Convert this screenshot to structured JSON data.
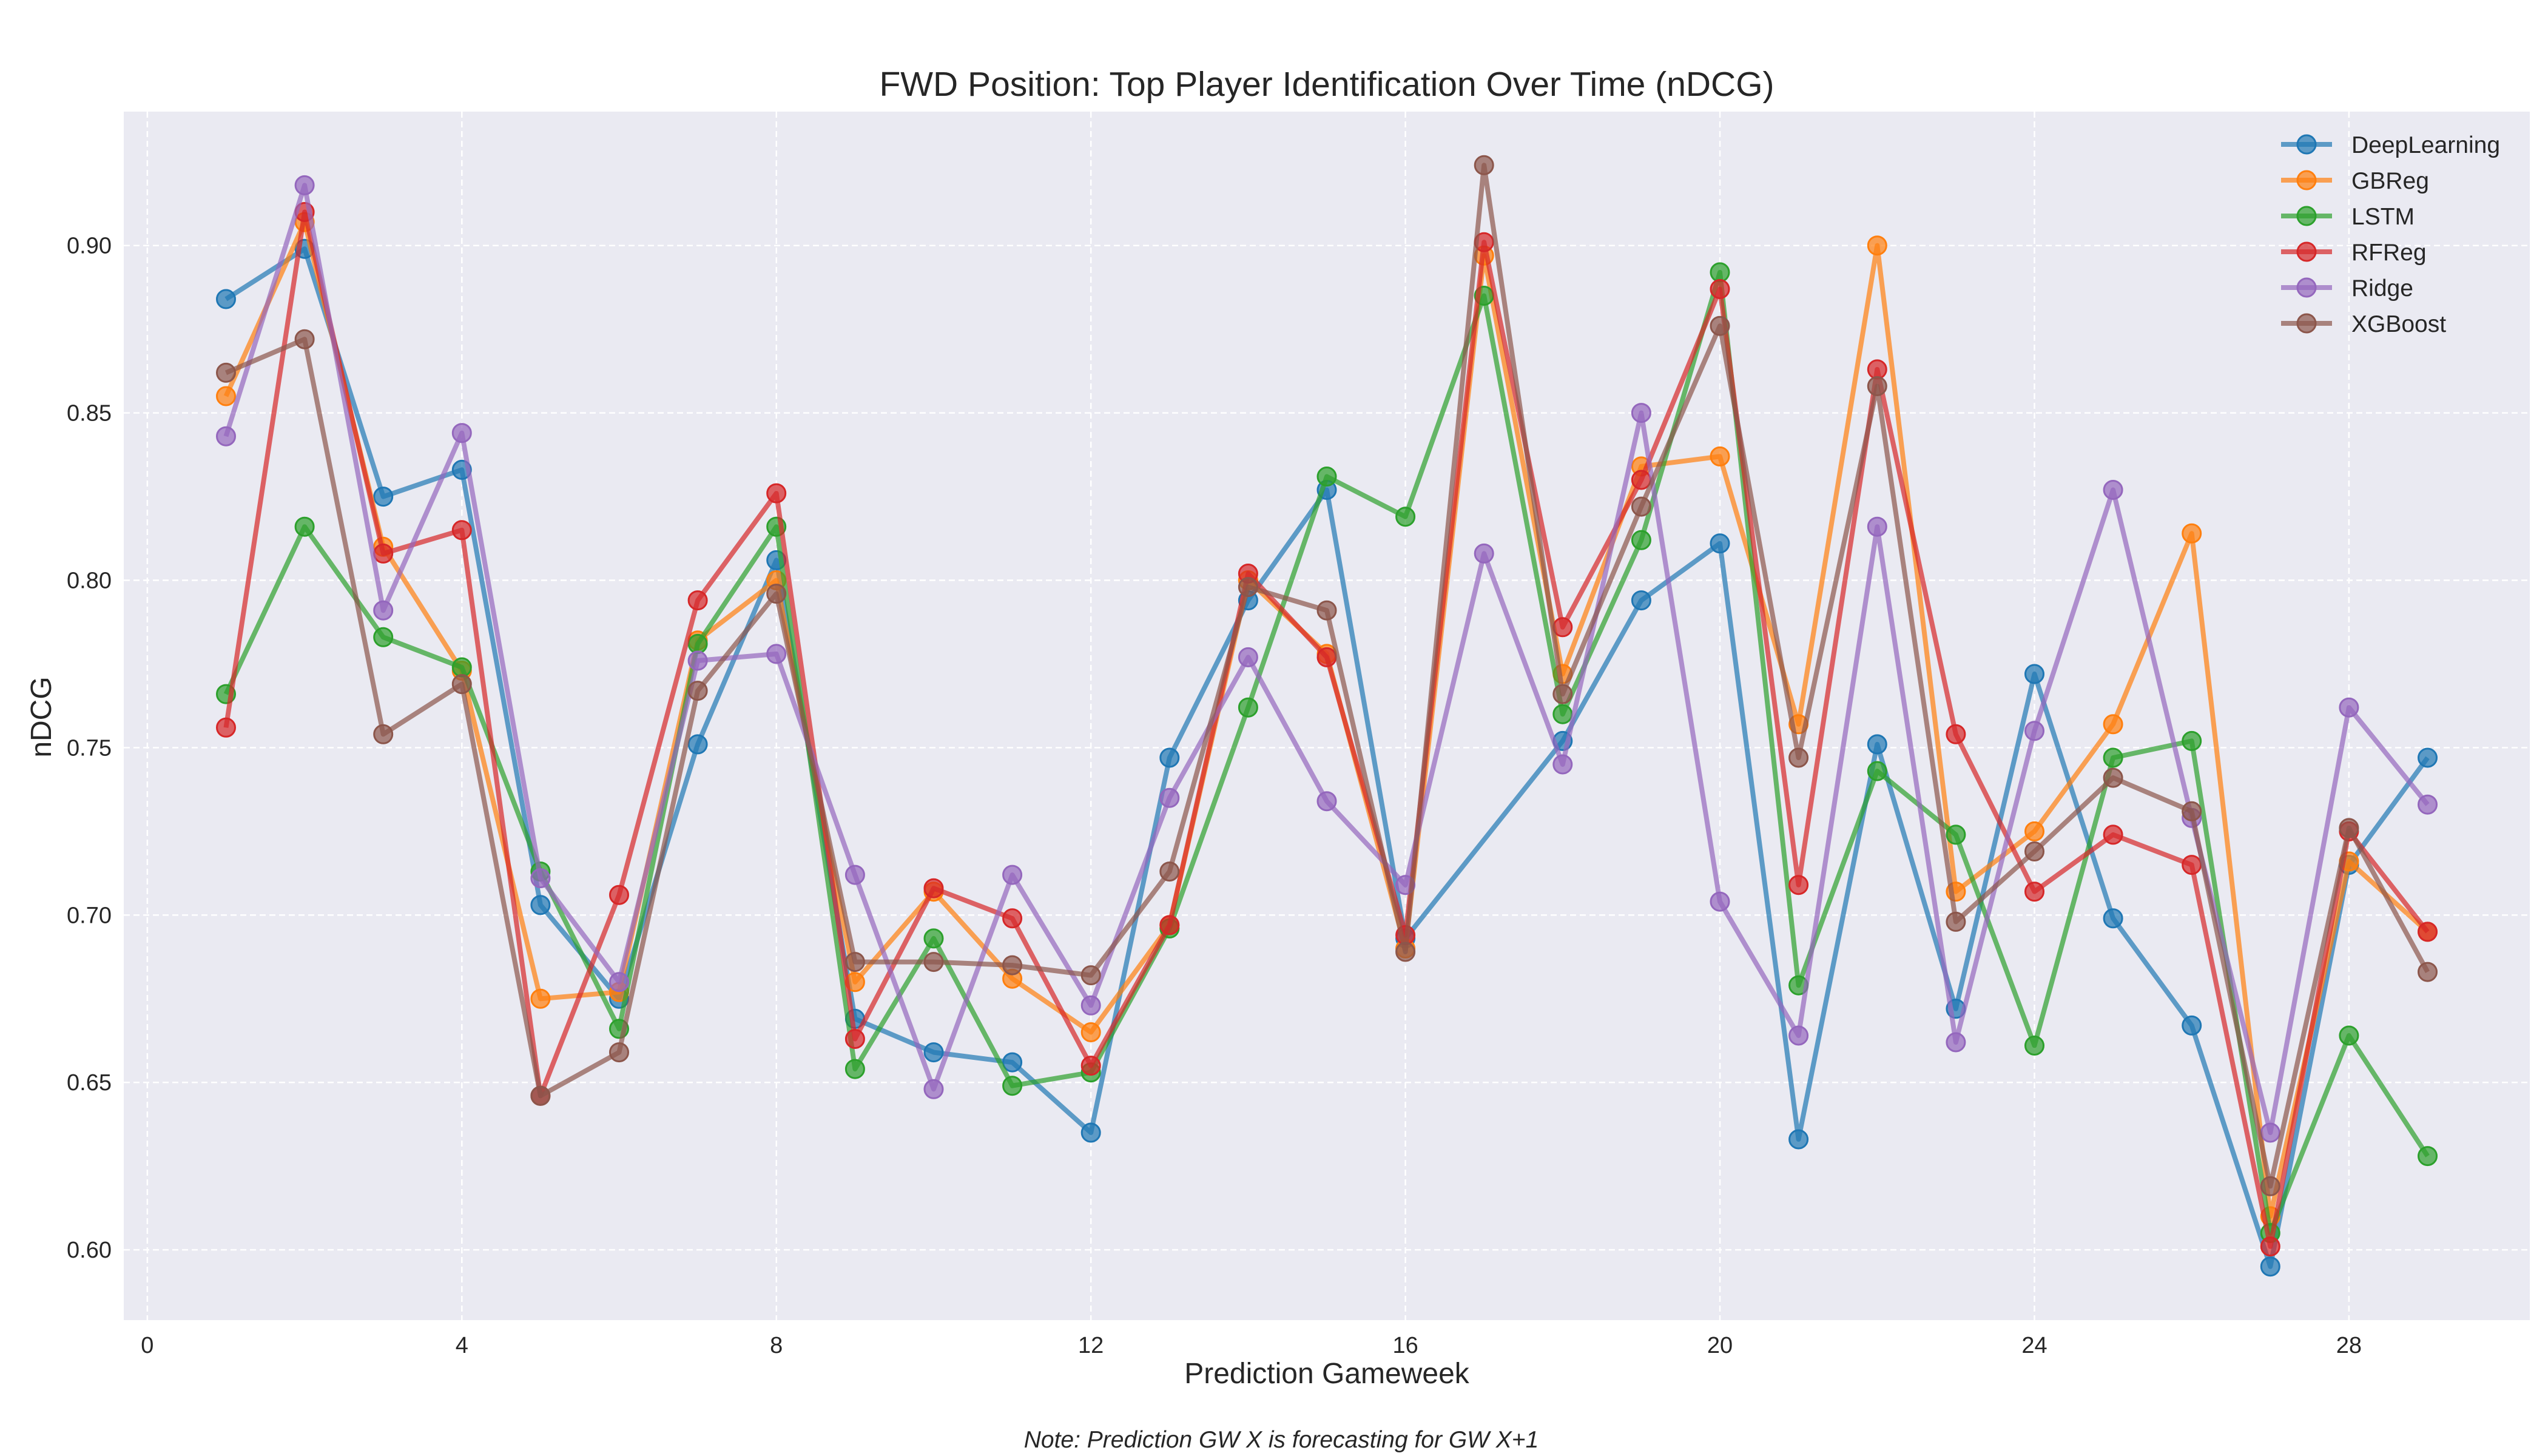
{
  "chart_data": {
    "type": "line",
    "title": "FWD Position: Top Player Identification Over Time (nDCG)",
    "xlabel": "Prediction Gameweek",
    "ylabel": "nDCG",
    "note": "Note: Prediction GW X is forecasting for GW X+1",
    "xlim": [
      -0.3,
      30.3
    ],
    "ylim": [
      0.579,
      0.94
    ],
    "x_ticks": [
      0,
      4,
      8,
      12,
      16,
      20,
      24,
      28
    ],
    "y_ticks": [
      0.6,
      0.65,
      0.7,
      0.75,
      0.8,
      0.85,
      0.9
    ],
    "x_tick_labels": [
      "0",
      "4",
      "8",
      "12",
      "16",
      "20",
      "24",
      "28"
    ],
    "y_tick_labels": [
      "0.60",
      "0.65",
      "0.70",
      "0.75",
      "0.80",
      "0.85",
      "0.90"
    ],
    "grid": true,
    "legend_position": "top-right",
    "x": [
      1,
      2,
      3,
      4,
      5,
      6,
      7,
      8,
      9,
      10,
      11,
      12,
      13,
      14,
      15,
      16,
      17,
      18,
      19,
      20,
      21,
      22,
      23,
      24,
      25,
      26,
      27,
      28,
      29
    ],
    "series": [
      {
        "name": "DeepLearning",
        "color": "#1f77b4",
        "points": [
          [
            1,
            0.884
          ],
          [
            2,
            0.899
          ],
          [
            3,
            0.825
          ],
          [
            4,
            0.833
          ],
          [
            5,
            0.703
          ],
          [
            6,
            0.675
          ],
          [
            7,
            0.751
          ],
          [
            8,
            0.806
          ],
          [
            9,
            0.669
          ],
          [
            10,
            0.659
          ],
          [
            11,
            0.656
          ],
          [
            12,
            0.635
          ],
          [
            13,
            0.747
          ],
          [
            14,
            0.794
          ],
          [
            15,
            0.827
          ],
          [
            16,
            0.693
          ],
          [
            18,
            0.752
          ],
          [
            19,
            0.794
          ],
          [
            20,
            0.811
          ],
          [
            21,
            0.633
          ],
          [
            22,
            0.751
          ],
          [
            23,
            0.672
          ],
          [
            24,
            0.772
          ],
          [
            25,
            0.699
          ],
          [
            26,
            0.667
          ],
          [
            27,
            0.595
          ],
          [
            28,
            0.715
          ],
          [
            29,
            0.747
          ]
        ]
      },
      {
        "name": "GBReg",
        "color": "#ff7f0e",
        "points": [
          [
            1,
            0.855
          ],
          [
            2,
            0.907
          ],
          [
            3,
            0.81
          ],
          [
            4,
            0.773
          ],
          [
            5,
            0.675
          ],
          [
            6,
            0.677
          ],
          [
            7,
            0.782
          ],
          [
            8,
            0.8
          ],
          [
            9,
            0.68
          ],
          [
            10,
            0.707
          ],
          [
            11,
            0.681
          ],
          [
            12,
            0.665
          ],
          [
            13,
            0.697
          ],
          [
            14,
            0.8
          ],
          [
            15,
            0.778
          ],
          [
            16,
            0.69
          ],
          [
            17,
            0.897
          ],
          [
            18,
            0.772
          ],
          [
            19,
            0.834
          ],
          [
            20,
            0.837
          ],
          [
            21,
            0.757
          ],
          [
            22,
            0.9
          ],
          [
            23,
            0.707
          ],
          [
            24,
            0.725
          ],
          [
            25,
            0.757
          ],
          [
            26,
            0.814
          ],
          [
            27,
            0.61
          ],
          [
            28,
            0.716
          ],
          [
            29,
            0.695
          ]
        ]
      },
      {
        "name": "LSTM",
        "color": "#2ca02c",
        "points": [
          [
            1,
            0.766
          ],
          [
            2,
            0.816
          ],
          [
            3,
            0.783
          ],
          [
            4,
            0.774
          ],
          [
            5,
            0.713
          ],
          [
            6,
            0.666
          ],
          [
            7,
            0.781
          ],
          [
            8,
            0.816
          ],
          [
            9,
            0.654
          ],
          [
            10,
            0.693
          ],
          [
            11,
            0.649
          ],
          [
            12,
            0.653
          ],
          [
            13,
            0.696
          ],
          [
            14,
            0.762
          ],
          [
            15,
            0.831
          ],
          [
            16,
            0.819
          ],
          [
            17,
            0.885
          ],
          [
            18,
            0.76
          ],
          [
            19,
            0.812
          ],
          [
            20,
            0.892
          ],
          [
            21,
            0.679
          ],
          [
            22,
            0.743
          ],
          [
            23,
            0.724
          ],
          [
            24,
            0.661
          ],
          [
            25,
            0.747
          ],
          [
            26,
            0.752
          ],
          [
            27,
            0.605
          ],
          [
            28,
            0.664
          ],
          [
            29,
            0.628
          ]
        ]
      },
      {
        "name": "RFReg",
        "color": "#d62728",
        "points": [
          [
            1,
            0.756
          ],
          [
            2,
            0.91
          ],
          [
            3,
            0.808
          ],
          [
            4,
            0.815
          ],
          [
            5,
            0.646
          ],
          [
            6,
            0.706
          ],
          [
            7,
            0.794
          ],
          [
            8,
            0.826
          ],
          [
            9,
            0.663
          ],
          [
            10,
            0.708
          ],
          [
            11,
            0.699
          ],
          [
            12,
            0.655
          ],
          [
            13,
            0.697
          ],
          [
            14,
            0.802
          ],
          [
            15,
            0.777
          ],
          [
            16,
            0.694
          ],
          [
            17,
            0.901
          ],
          [
            18,
            0.786
          ],
          [
            19,
            0.83
          ],
          [
            20,
            0.887
          ],
          [
            21,
            0.709
          ],
          [
            22,
            0.863
          ],
          [
            23,
            0.754
          ],
          [
            24,
            0.707
          ],
          [
            25,
            0.724
          ],
          [
            26,
            0.715
          ],
          [
            27,
            0.601
          ],
          [
            28,
            0.725
          ],
          [
            29,
            0.695
          ]
        ]
      },
      {
        "name": "Ridge",
        "color": "#9467bd",
        "points": [
          [
            1,
            0.843
          ],
          [
            2,
            0.918
          ],
          [
            3,
            0.791
          ],
          [
            4,
            0.844
          ],
          [
            5,
            0.711
          ],
          [
            6,
            0.68
          ],
          [
            7,
            0.776
          ],
          [
            8,
            0.778
          ],
          [
            9,
            0.712
          ],
          [
            10,
            0.648
          ],
          [
            11,
            0.712
          ],
          [
            12,
            0.673
          ],
          [
            13,
            0.735
          ],
          [
            14,
            0.777
          ],
          [
            15,
            0.734
          ],
          [
            16,
            0.709
          ],
          [
            17,
            0.808
          ],
          [
            18,
            0.745
          ],
          [
            19,
            0.85
          ],
          [
            20,
            0.704
          ],
          [
            21,
            0.664
          ],
          [
            22,
            0.816
          ],
          [
            23,
            0.662
          ],
          [
            24,
            0.755
          ],
          [
            25,
            0.827
          ],
          [
            26,
            0.729
          ],
          [
            27,
            0.635
          ],
          [
            28,
            0.762
          ],
          [
            29,
            0.733
          ]
        ]
      },
      {
        "name": "XGBoost",
        "color": "#8c564b",
        "points": [
          [
            1,
            0.862
          ],
          [
            2,
            0.872
          ],
          [
            3,
            0.754
          ],
          [
            4,
            0.769
          ],
          [
            5,
            0.646
          ],
          [
            6,
            0.659
          ],
          [
            7,
            0.767
          ],
          [
            8,
            0.796
          ],
          [
            9,
            0.686
          ],
          [
            10,
            0.686
          ],
          [
            11,
            0.685
          ],
          [
            12,
            0.682
          ],
          [
            13,
            0.713
          ],
          [
            14,
            0.798
          ],
          [
            15,
            0.791
          ],
          [
            16,
            0.689
          ],
          [
            17,
            0.924
          ],
          [
            18,
            0.766
          ],
          [
            19,
            0.822
          ],
          [
            20,
            0.876
          ],
          [
            21,
            0.747
          ],
          [
            22,
            0.858
          ],
          [
            23,
            0.698
          ],
          [
            24,
            0.719
          ],
          [
            25,
            0.741
          ],
          [
            26,
            0.731
          ],
          [
            27,
            0.619
          ],
          [
            28,
            0.726
          ],
          [
            29,
            0.683
          ]
        ]
      }
    ]
  },
  "colors": {
    "plot_background": "#eaeaf2",
    "grid": "#ffffff",
    "text": "#262626"
  }
}
